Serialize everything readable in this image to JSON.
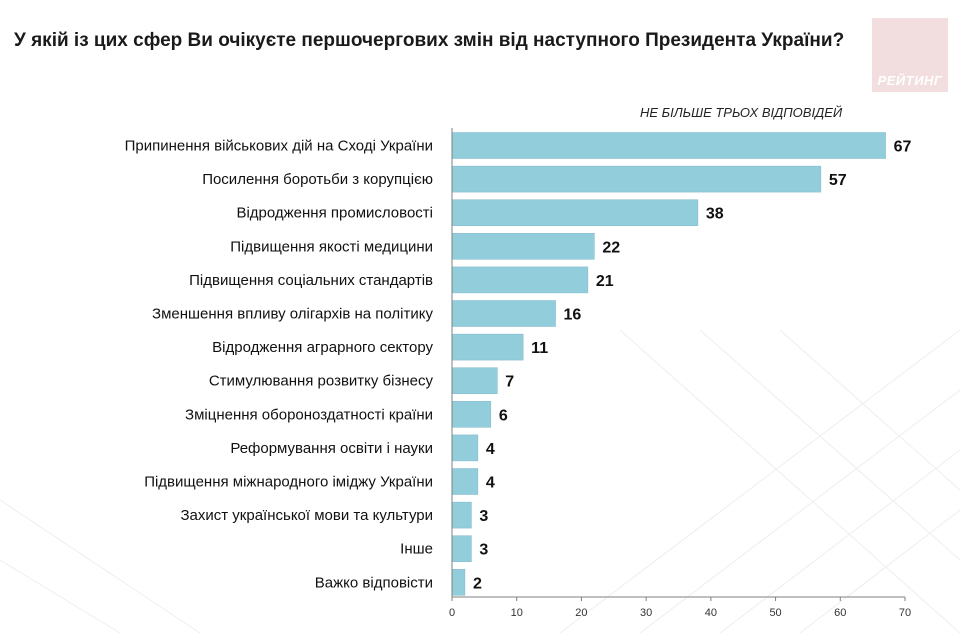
{
  "header": {
    "title": "У якій із цих сфер Ви очікуєте першочергових змін від наступного Президента України?",
    "subtitle": "НЕ БІЛЬШЕ ТРЬОХ ВІДПОВІДЕЙ",
    "logo_text": "РЕЙТИНГ"
  },
  "colors": {
    "bar": "#92cddc",
    "bar_stroke": "#7fb9c9",
    "logo_bg": "#f2dede"
  },
  "chart_data": {
    "type": "bar",
    "orientation": "horizontal",
    "title": "У якій із цих сфер Ви очікуєте першочергових змін від наступного Президента України?",
    "subtitle": "НЕ БІЛЬШЕ ТРЬОХ ВІДПОВІДЕЙ",
    "categories": [
      "Припинення військових дій на Сході України",
      "Посилення боротьби з корупцією",
      "Відродження промисловості",
      "Підвищення якості медицини",
      "Підвищення соціальних стандартів",
      "Зменшення впливу олігархів на політику",
      "Відродження аграрного сектору",
      "Стимулювання розвитку бізнесу",
      "Зміцнення обороноздатності країни",
      "Реформування освіти і науки",
      "Підвищення міжнародного іміджу України",
      "Захист української мови та культури",
      "Інше",
      "Важко відповісти"
    ],
    "values": [
      67,
      57,
      38,
      22,
      21,
      16,
      11,
      7,
      6,
      4,
      4,
      3,
      3,
      2
    ],
    "xlim": [
      0,
      70
    ],
    "xticks": [
      "0",
      "10",
      "20",
      "30",
      "40",
      "50",
      "60",
      "70"
    ],
    "grid": false,
    "legend": "none"
  }
}
